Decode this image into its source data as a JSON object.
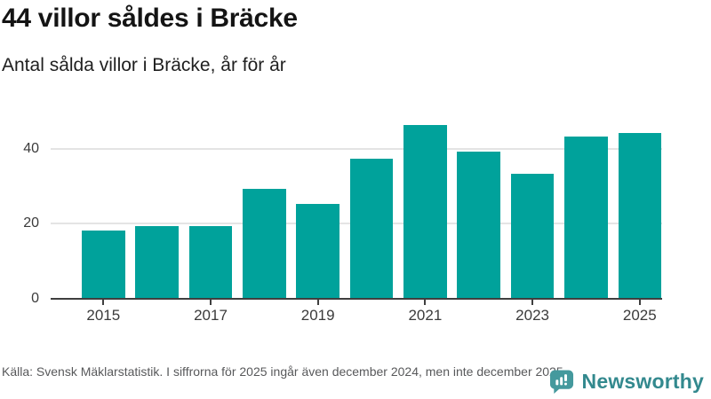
{
  "header": {
    "title": "44 villor såldes i Bräcke",
    "subtitle": "Antal sålda villor i Bräcke, år för år"
  },
  "chart_data": {
    "type": "bar",
    "title": "44 villor såldes i Bräcke",
    "subtitle": "Antal sålda villor i Bräcke, år för år",
    "categories": [
      2015,
      2016,
      2017,
      2018,
      2019,
      2020,
      2021,
      2022,
      2023,
      2024,
      2025
    ],
    "values": [
      18,
      19,
      19,
      29,
      25,
      37,
      46,
      39,
      33,
      43,
      44
    ],
    "xlabel": "",
    "ylabel": "",
    "xticks": [
      2015,
      2017,
      2019,
      2021,
      2023,
      2025
    ],
    "yticks": [
      0,
      20,
      40
    ],
    "ylim": [
      0,
      48.6
    ],
    "grid": true,
    "legend": false,
    "bar_color": "#00a29b",
    "axis_color": "#3f3f3f",
    "gridline_color": "#e4e4e4"
  },
  "footer": {
    "source": "Källa: Svensk Mäklarstatistik. I siffrorna för 2025 ingår även december 2024, men inte december 2025.",
    "brand": "Newsworthy",
    "logo_icon": "newsworthy-bar-chart-speech-bubble-icon",
    "brand_color": "#33898e",
    "icon_color": "#44999d"
  }
}
